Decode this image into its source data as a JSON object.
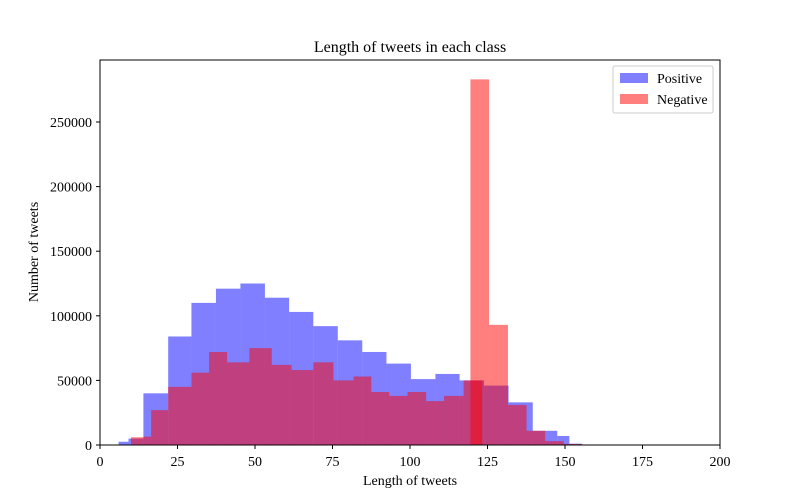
{
  "chart_data": {
    "type": "histogram",
    "title": "Length of tweets in each class",
    "xlabel": "Length of tweets",
    "ylabel": "Number of tweets",
    "xlim": [
      0,
      200
    ],
    "ylim": [
      0,
      298000
    ],
    "xticks": [
      0,
      25,
      50,
      75,
      100,
      125,
      150,
      175,
      200
    ],
    "yticks": [
      0,
      50000,
      100000,
      150000,
      200000,
      250000
    ],
    "legend_position": "top-right",
    "grid": false,
    "series": [
      {
        "name": "Positive",
        "color": "#0000ff",
        "opacity": 0.5,
        "bins": [
          [
            6.0,
            9.2,
            2500
          ],
          [
            9.2,
            14.0,
            5000
          ],
          [
            14.0,
            22.0,
            40000
          ],
          [
            22.0,
            29.5,
            84000
          ],
          [
            29.5,
            37.4,
            110000
          ],
          [
            37.4,
            45.3,
            121000
          ],
          [
            45.3,
            53.2,
            125000
          ],
          [
            53.2,
            61.0,
            114000
          ],
          [
            61.0,
            68.8,
            103000
          ],
          [
            68.8,
            76.7,
            92000
          ],
          [
            76.7,
            84.6,
            81000
          ],
          [
            84.6,
            92.4,
            72000
          ],
          [
            92.4,
            100.3,
            63000
          ],
          [
            100.3,
            108.2,
            51000
          ],
          [
            108.2,
            116.0,
            55000
          ],
          [
            116.0,
            123.9,
            50000
          ],
          [
            123.9,
            131.8,
            46000
          ],
          [
            131.8,
            139.6,
            33000
          ],
          [
            139.6,
            147.5,
            11000
          ],
          [
            147.5,
            151.4,
            7000
          ],
          [
            151.4,
            155.4,
            1000
          ],
          [
            155.4,
            157.0,
            200
          ]
        ]
      },
      {
        "name": "Negative",
        "color": "#ff0000",
        "opacity": 0.5,
        "bins": [
          [
            10.0,
            14.0,
            6000
          ],
          [
            14.0,
            16.5,
            6500
          ],
          [
            16.5,
            22.0,
            27000
          ],
          [
            22.0,
            29.5,
            45000
          ],
          [
            29.5,
            35.2,
            56000
          ],
          [
            35.2,
            41.0,
            72000
          ],
          [
            41.0,
            48.2,
            64000
          ],
          [
            48.2,
            55.4,
            75000
          ],
          [
            55.4,
            61.8,
            62000
          ],
          [
            61.8,
            68.8,
            58000
          ],
          [
            68.8,
            75.3,
            64000
          ],
          [
            75.3,
            81.8,
            50000
          ],
          [
            81.8,
            87.5,
            53000
          ],
          [
            87.5,
            93.3,
            41000
          ],
          [
            93.3,
            99.2,
            38000
          ],
          [
            99.2,
            105.2,
            41000
          ],
          [
            105.2,
            111.0,
            34000
          ],
          [
            111.0,
            117.3,
            38000
          ],
          [
            117.3,
            123.3,
            50000
          ],
          [
            119.5,
            125.5,
            283000
          ],
          [
            125.5,
            131.6,
            93000
          ],
          [
            131.6,
            137.6,
            31000
          ],
          [
            137.6,
            143.6,
            11000
          ],
          [
            143.6,
            149.6,
            3000
          ],
          [
            149.6,
            155.6,
            800
          ]
        ]
      }
    ]
  }
}
